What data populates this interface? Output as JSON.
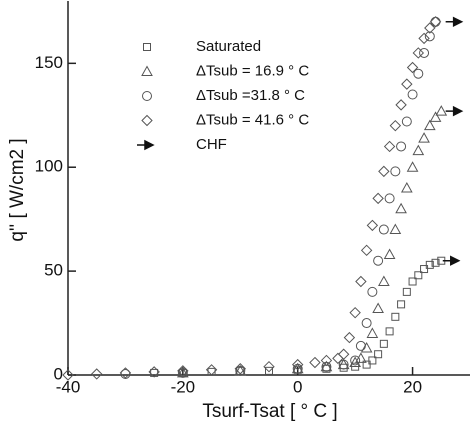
{
  "chart_data": {
    "type": "scatter",
    "xlabel": "Tsurf-Tsat [ ° C ]",
    "ylabel": "q'' [ W/cm2 ]",
    "xlim": [
      -40,
      30
    ],
    "ylim": [
      0,
      180
    ],
    "xticks": [
      -40,
      -20,
      0,
      20
    ],
    "yticks": [
      0,
      50,
      100,
      150
    ],
    "series": [
      {
        "name": "Saturated",
        "marker": "square",
        "color": "#555555",
        "x": [
          -25,
          -20,
          -15,
          -10,
          -5,
          0,
          5,
          8,
          10,
          12,
          13,
          14,
          15,
          16,
          17,
          18,
          19,
          20,
          21,
          22,
          23,
          24,
          25
        ],
        "values": [
          1,
          1,
          1.5,
          2,
          2,
          2.5,
          3,
          3.5,
          4,
          5,
          7,
          10,
          15,
          21,
          28,
          34,
          40,
          45,
          48,
          51,
          53,
          54,
          55
        ]
      },
      {
        "name": "ΔTsub = 16.9 ° C",
        "marker": "triangle",
        "color": "#555555",
        "x": [
          -20,
          -10,
          0,
          5,
          8,
          10,
          11,
          12,
          13,
          14,
          15,
          16,
          17,
          18,
          19,
          20,
          21,
          22,
          23,
          24,
          25
        ],
        "values": [
          1,
          2,
          3,
          4,
          5,
          6,
          8,
          13,
          20,
          32,
          45,
          58,
          70,
          80,
          90,
          100,
          108,
          114,
          120,
          124,
          127
        ]
      },
      {
        "name": "ΔTsub =31.8 ° C",
        "marker": "circle",
        "color": "#555555",
        "x": [
          -30,
          -20,
          -10,
          0,
          5,
          8,
          10,
          11,
          12,
          13,
          14,
          15,
          16,
          17,
          18,
          19,
          20,
          21,
          22,
          23,
          24
        ],
        "values": [
          0.5,
          1,
          2,
          3,
          4,
          5,
          7,
          14,
          25,
          40,
          55,
          70,
          85,
          98,
          110,
          122,
          135,
          145,
          155,
          163,
          170
        ]
      },
      {
        "name": "ΔTsub = 41.6 ° C",
        "marker": "diamond",
        "color": "#555555",
        "x": [
          -40,
          -35,
          -30,
          -25,
          -20,
          -15,
          -10,
          -5,
          0,
          3,
          5,
          7,
          8,
          9,
          10,
          11,
          12,
          13,
          14,
          15,
          16,
          17,
          18,
          19,
          20,
          21,
          22,
          23,
          24
        ],
        "values": [
          0,
          0.5,
          1,
          1.5,
          2,
          2.5,
          3,
          4,
          5,
          6,
          7,
          8,
          10,
          18,
          30,
          45,
          60,
          72,
          85,
          98,
          110,
          120,
          130,
          140,
          148,
          155,
          162,
          167,
          170
        ]
      },
      {
        "name": "CHF",
        "marker": "arrow",
        "color": "#111111",
        "x": [
          27,
          27.5,
          27.5
        ],
        "values": [
          55,
          127,
          170
        ]
      }
    ]
  }
}
